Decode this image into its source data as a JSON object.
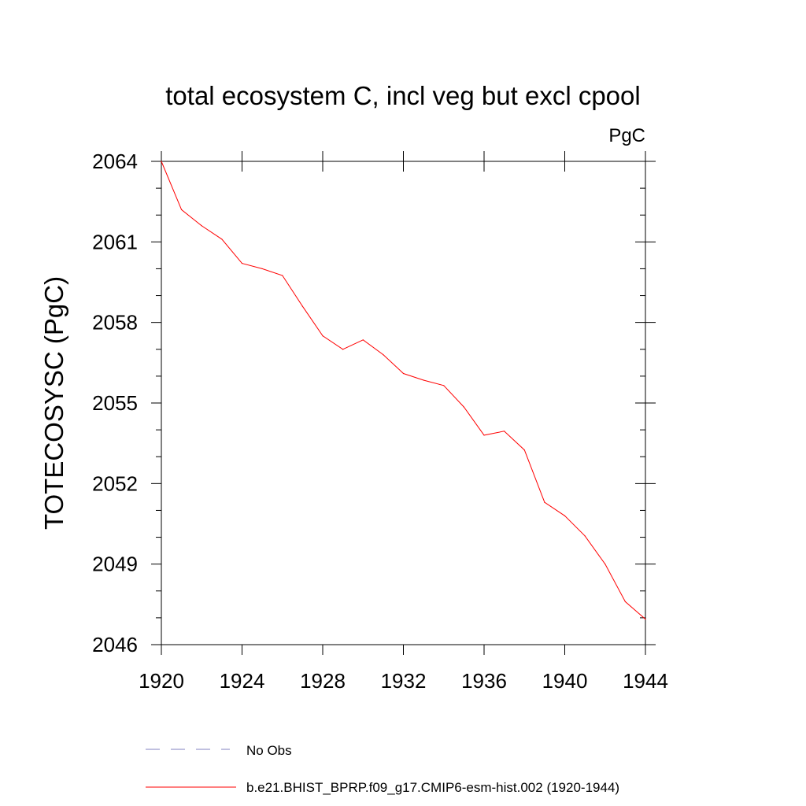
{
  "chart_data": {
    "type": "line",
    "title": "total ecosystem C, incl veg but excl cpool",
    "units_label": "PgC",
    "xlabel": "",
    "ylabel": "TOTECOSYSC  (PgC)",
    "xlim": [
      1920,
      1944
    ],
    "ylim": [
      2046,
      2064
    ],
    "xticks": [
      1920,
      1924,
      1928,
      1932,
      1936,
      1940,
      1944
    ],
    "yticks": [
      2046,
      2049,
      2052,
      2055,
      2058,
      2061,
      2064
    ],
    "grid": false,
    "legend_position": "bottom",
    "series": [
      {
        "name": "b.e21.BHIST_BPRP.f09_g17.CMIP6-esm-hist.002 (1920-1944)",
        "color": "#ff0000",
        "style": "solid",
        "x": [
          1920,
          1921,
          1922,
          1923,
          1924,
          1925,
          1926,
          1927,
          1928,
          1929,
          1930,
          1931,
          1932,
          1933,
          1934,
          1935,
          1936,
          1937,
          1938,
          1939,
          1940,
          1941,
          1942,
          1943,
          1944
        ],
        "y": [
          2064.0,
          2062.2,
          2061.6,
          2061.1,
          2060.2,
          2060.0,
          2059.75,
          2058.6,
          2057.5,
          2057.0,
          2057.35,
          2056.8,
          2056.1,
          2055.85,
          2055.65,
          2054.85,
          2053.8,
          2053.95,
          2053.25,
          2051.3,
          2050.8,
          2050.05,
          2049.0,
          2047.6,
          2046.95
        ]
      }
    ],
    "legend": [
      {
        "label": "No Obs",
        "color": "#8080c0",
        "style": "dashed"
      },
      {
        "label": "b.e21.BHIST_BPRP.f09_g17.CMIP6-esm-hist.002 (1920-1944)",
        "color": "#ff0000",
        "style": "solid"
      }
    ]
  }
}
